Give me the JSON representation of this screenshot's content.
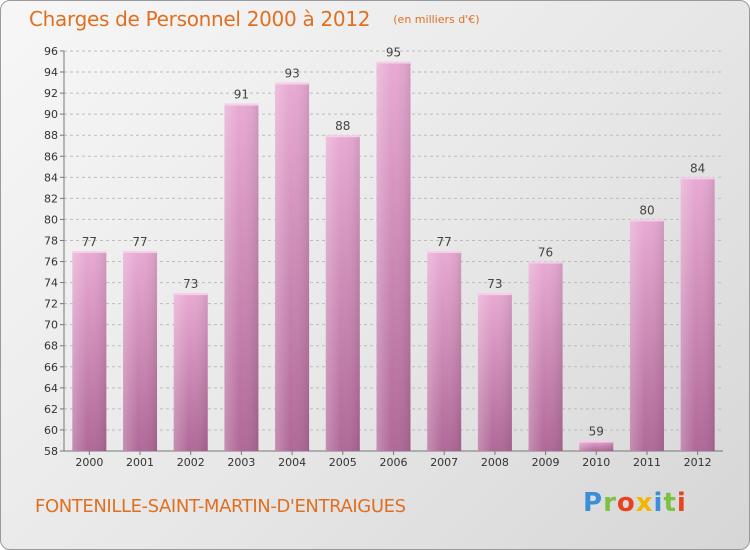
{
  "header": {
    "title": "Charges de Personnel 2000 à 2012",
    "unit": "(en milliers d'€)"
  },
  "footer": {
    "place": "FONTENILLE-SAINT-MARTIN-D'ENTRAIGUES",
    "logo": "Proxiti"
  },
  "colors": {
    "title": "#e07020",
    "bar_top": "#e8aad3",
    "bar_bottom": "#b06898",
    "logo": [
      "#3a8fd8",
      "#7cc242",
      "#e8421e",
      "#f2b500",
      "#3a8fd8",
      "#7cc242",
      "#e8421e"
    ]
  },
  "chart_data": {
    "type": "bar",
    "title": "Charges de Personnel 2000 à 2012",
    "subtitle": "(en milliers d'€)",
    "categories": [
      "2000",
      "2001",
      "2002",
      "2003",
      "2004",
      "2005",
      "2006",
      "2007",
      "2008",
      "2009",
      "2010",
      "2011",
      "2012"
    ],
    "values": [
      77,
      77,
      73,
      91,
      93,
      88,
      95,
      77,
      73,
      76,
      59,
      80,
      84
    ],
    "ylim": [
      58,
      96
    ],
    "yticks": [
      58,
      60,
      62,
      64,
      66,
      68,
      70,
      72,
      74,
      76,
      78,
      80,
      82,
      84,
      86,
      88,
      90,
      92,
      94,
      96
    ],
    "grid": "horizontal dashed",
    "legend": "none"
  }
}
